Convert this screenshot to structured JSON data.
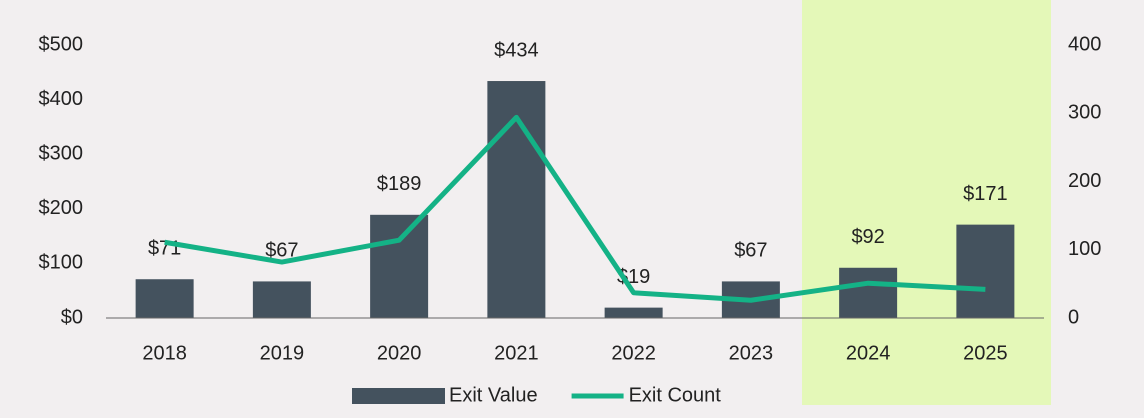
{
  "chart_data": {
    "type": "bar",
    "categories": [
      "2018",
      "2019",
      "2020",
      "2021",
      "2022",
      "2023",
      "2024",
      "2025"
    ],
    "series": [
      {
        "name": "Exit Value",
        "type": "bar",
        "color": "#44525e",
        "values": [
          71,
          67,
          189,
          434,
          19,
          67,
          92,
          171
        ],
        "value_labels": [
          "$71",
          "$67",
          "$189",
          "$434",
          "$19",
          "$67",
          "$92",
          "$171"
        ]
      },
      {
        "name": "Exit Count",
        "type": "line",
        "axis": "y2",
        "color": "#14b286",
        "values": [
          111,
          82,
          114,
          294,
          37,
          26,
          51,
          42
        ]
      }
    ],
    "ylim": [
      0,
      500
    ],
    "yticks": [
      {
        "value": 0,
        "label": "$0"
      },
      {
        "value": 100,
        "label": "$100"
      },
      {
        "value": 200,
        "label": "$200"
      },
      {
        "value": 300,
        "label": "$300"
      },
      {
        "value": 400,
        "label": "$400"
      },
      {
        "value": 500,
        "label": "$500"
      }
    ],
    "y2lim": [
      0,
      400
    ],
    "y2ticks": [
      0,
      100,
      200,
      300,
      400
    ],
    "legend": "bottom"
  }
}
